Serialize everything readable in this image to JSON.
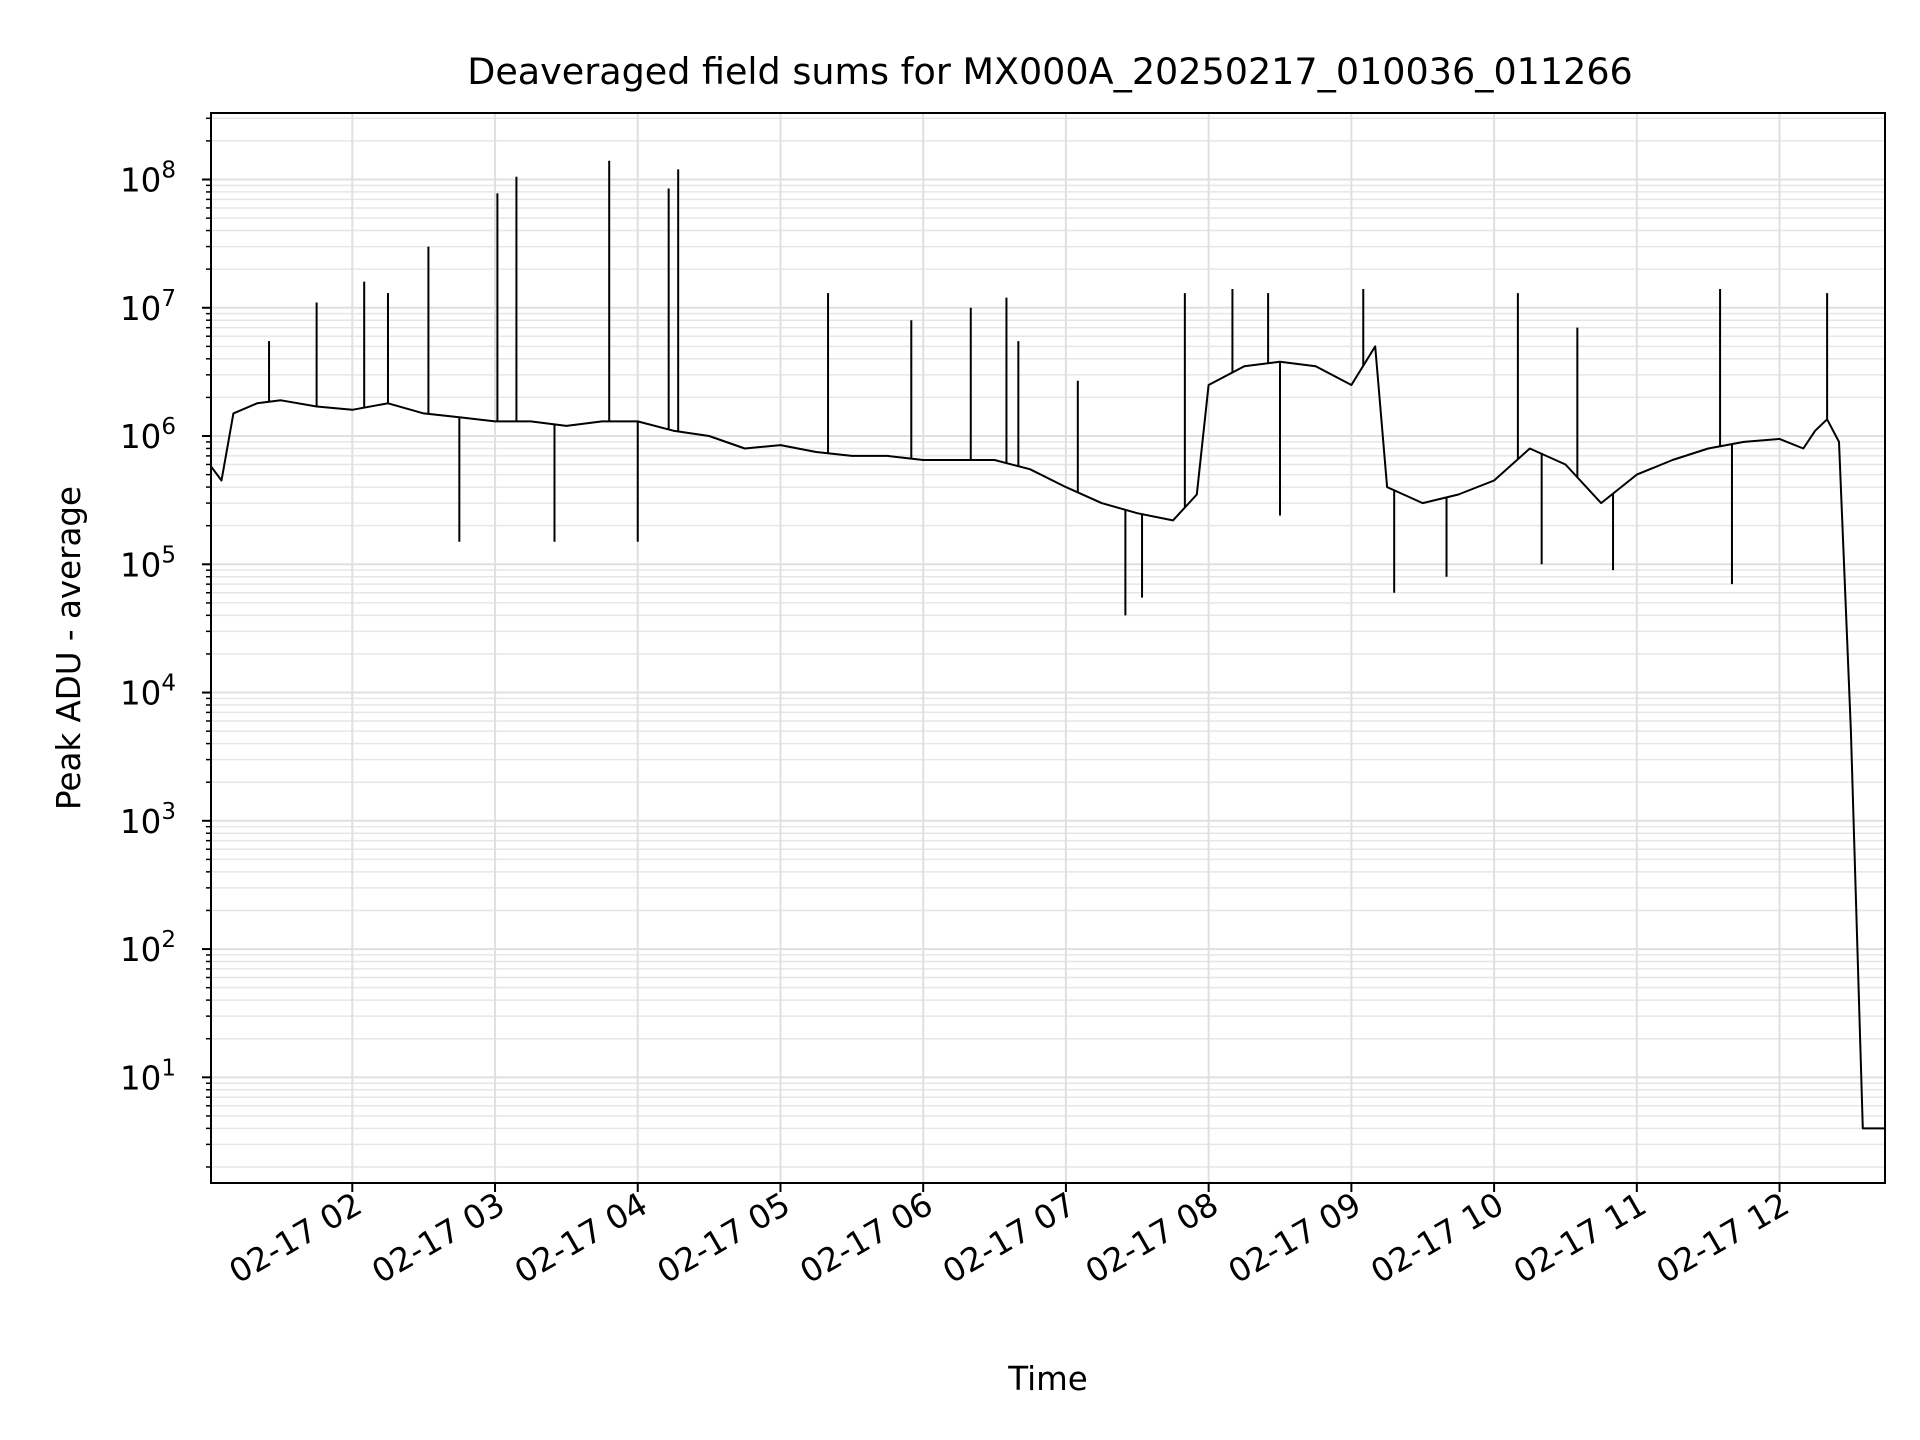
{
  "chart_data": {
    "type": "line",
    "title": "Deaveraged field sums for MX000A_20250217_010036_011266",
    "xlabel": "Time",
    "ylabel": "Peak ADU - average",
    "yscale": "log",
    "ylim": [
      1.5,
      330000000
    ],
    "xlim": [
      "2025-02-17 01:00:36",
      "2025-02-17 12:44:20"
    ],
    "grid": "on (major and minor)",
    "legend": "none",
    "line_color": "#000000",
    "x_ticks": [
      {
        "value": "2025-02-17 02:00",
        "label": "02-17 02"
      },
      {
        "value": "2025-02-17 03:00",
        "label": "02-17 03"
      },
      {
        "value": "2025-02-17 04:00",
        "label": "02-17 04"
      },
      {
        "value": "2025-02-17 05:00",
        "label": "02-17 05"
      },
      {
        "value": "2025-02-17 06:00",
        "label": "02-17 06"
      },
      {
        "value": "2025-02-17 07:00",
        "label": "02-17 07"
      },
      {
        "value": "2025-02-17 08:00",
        "label": "02-17 08"
      },
      {
        "value": "2025-02-17 09:00",
        "label": "02-17 09"
      },
      {
        "value": "2025-02-17 10:00",
        "label": "02-17 10"
      },
      {
        "value": "2025-02-17 11:00",
        "label": "02-17 11"
      },
      {
        "value": "2025-02-17 12:00",
        "label": "02-17 12"
      }
    ],
    "y_ticks": [
      {
        "value": 10,
        "base": "10",
        "exp": "1"
      },
      {
        "value": 100,
        "base": "10",
        "exp": "2"
      },
      {
        "value": 1000,
        "base": "10",
        "exp": "3"
      },
      {
        "value": 10000,
        "base": "10",
        "exp": "4"
      },
      {
        "value": 100000,
        "base": "10",
        "exp": "5"
      },
      {
        "value": 1000000,
        "base": "10",
        "exp": "6"
      },
      {
        "value": 10000000,
        "base": "10",
        "exp": "7"
      },
      {
        "value": 100000000,
        "base": "10",
        "exp": "8"
      }
    ],
    "series": [
      {
        "x": [
          "2025-02-17 01:00",
          "2025-02-17 01:05",
          "2025-02-17 01:10",
          "2025-02-17 01:20",
          "2025-02-17 01:30",
          "2025-02-17 01:45",
          "2025-02-17 02:00",
          "2025-02-17 02:15",
          "2025-02-17 02:30",
          "2025-02-17 02:45",
          "2025-02-17 03:00",
          "2025-02-17 03:15",
          "2025-02-17 03:30",
          "2025-02-17 03:45",
          "2025-02-17 04:00",
          "2025-02-17 04:15",
          "2025-02-17 04:30",
          "2025-02-17 04:45",
          "2025-02-17 05:00",
          "2025-02-17 05:15",
          "2025-02-17 05:30",
          "2025-02-17 05:45",
          "2025-02-17 06:00",
          "2025-02-17 06:15",
          "2025-02-17 06:30",
          "2025-02-17 06:45",
          "2025-02-17 07:00",
          "2025-02-17 07:15",
          "2025-02-17 07:30",
          "2025-02-17 07:45",
          "2025-02-17 07:55",
          "2025-02-17 08:00",
          "2025-02-17 08:15",
          "2025-02-17 08:30",
          "2025-02-17 08:45",
          "2025-02-17 09:00",
          "2025-02-17 09:10",
          "2025-02-17 09:15",
          "2025-02-17 09:30",
          "2025-02-17 09:45",
          "2025-02-17 10:00",
          "2025-02-17 10:15",
          "2025-02-17 10:30",
          "2025-02-17 10:45",
          "2025-02-17 11:00",
          "2025-02-17 11:15",
          "2025-02-17 11:30",
          "2025-02-17 11:45",
          "2025-02-17 12:00",
          "2025-02-17 12:10",
          "2025-02-17 12:15",
          "2025-02-17 12:20",
          "2025-02-17 12:25",
          "2025-02-17 12:30",
          "2025-02-17 12:35",
          "2025-02-17 12:44"
        ],
        "y": [
          600000,
          450000,
          1500000,
          1800000,
          1900000,
          1700000,
          1600000,
          1800000,
          1500000,
          1400000,
          1300000,
          1300000,
          1200000,
          1300000,
          1300000,
          1100000,
          1000000,
          800000,
          850000,
          750000,
          700000,
          700000,
          650000,
          650000,
          650000,
          550000,
          400000,
          300000,
          250000,
          220000,
          350000,
          2500000,
          3500000,
          3800000,
          3500000,
          2500000,
          5000000,
          400000,
          300000,
          350000,
          450000,
          800000,
          600000,
          300000,
          500000,
          650000,
          800000,
          900000,
          950000,
          800000,
          1100000,
          1350000,
          900000,
          5000,
          4,
          4
        ]
      }
    ],
    "spikes": [
      {
        "x": "2025-02-17 01:25",
        "y": 5500000
      },
      {
        "x": "2025-02-17 01:45",
        "y": 11000000
      },
      {
        "x": "2025-02-17 02:05",
        "y": 16000000
      },
      {
        "x": "2025-02-17 02:15",
        "y": 13000000
      },
      {
        "x": "2025-02-17 02:32",
        "y": 30000000
      },
      {
        "x": "2025-02-17 02:45",
        "y": 150000
      },
      {
        "x": "2025-02-17 03:01",
        "y": 78000000
      },
      {
        "x": "2025-02-17 03:09",
        "y": 105000000
      },
      {
        "x": "2025-02-17 03:25",
        "y": 150000
      },
      {
        "x": "2025-02-17 03:48",
        "y": 140000000
      },
      {
        "x": "2025-02-17 04:00",
        "y": 150000
      },
      {
        "x": "2025-02-17 04:13",
        "y": 85000000
      },
      {
        "x": "2025-02-17 04:17",
        "y": 120000000
      },
      {
        "x": "2025-02-17 05:20",
        "y": 13000000
      },
      {
        "x": "2025-02-17 05:55",
        "y": 8000000
      },
      {
        "x": "2025-02-17 06:20",
        "y": 10000000
      },
      {
        "x": "2025-02-17 06:35",
        "y": 12000000
      },
      {
        "x": "2025-02-17 06:40",
        "y": 5500000
      },
      {
        "x": "2025-02-17 07:05",
        "y": 2700000
      },
      {
        "x": "2025-02-17 07:25",
        "y": 40000
      },
      {
        "x": "2025-02-17 07:32",
        "y": 55000
      },
      {
        "x": "2025-02-17 07:50",
        "y": 13000000
      },
      {
        "x": "2025-02-17 08:10",
        "y": 14000000
      },
      {
        "x": "2025-02-17 08:25",
        "y": 13000000
      },
      {
        "x": "2025-02-17 08:30",
        "y": 240000
      },
      {
        "x": "2025-02-17 09:05",
        "y": 14000000
      },
      {
        "x": "2025-02-17 09:18",
        "y": 60000
      },
      {
        "x": "2025-02-17 09:40",
        "y": 80000
      },
      {
        "x": "2025-02-17 10:10",
        "y": 13000000
      },
      {
        "x": "2025-02-17 10:20",
        "y": 100000
      },
      {
        "x": "2025-02-17 10:35",
        "y": 7000000
      },
      {
        "x": "2025-02-17 10:50",
        "y": 90000
      },
      {
        "x": "2025-02-17 11:35",
        "y": 14000000
      },
      {
        "x": "2025-02-17 11:40",
        "y": 70000
      },
      {
        "x": "2025-02-17 12:20",
        "y": 13000000
      }
    ]
  }
}
